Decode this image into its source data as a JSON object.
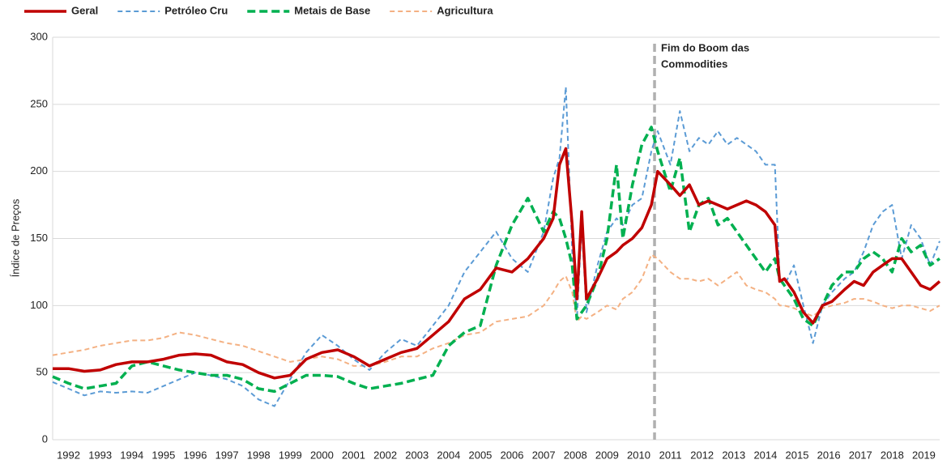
{
  "chart_data": {
    "type": "line",
    "y_label": "Índice de Preços",
    "annotation": {
      "x": 2011,
      "text": [
        "Fim do Boom das",
        "Commodities"
      ]
    },
    "xlim": [
      1992,
      2020
    ],
    "xticks": [
      1992,
      1993,
      1994,
      1995,
      1996,
      1997,
      1998,
      1999,
      2000,
      2001,
      2002,
      2003,
      2004,
      2005,
      2006,
      2007,
      2008,
      2009,
      2010,
      2011,
      2012,
      2013,
      2014,
      2015,
      2016,
      2017,
      2018,
      2019
    ],
    "ylim": [
      0,
      300
    ],
    "yticks": [
      0,
      50,
      100,
      150,
      200,
      250,
      300
    ],
    "grid": true,
    "legend": "top-left",
    "x": [
      1992,
      1992.5,
      1993,
      1993.5,
      1994,
      1994.5,
      1995,
      1995.5,
      1996,
      1996.5,
      1997,
      1997.5,
      1998,
      1998.5,
      1999,
      1999.5,
      2000,
      2000.5,
      2001,
      2001.5,
      2002,
      2002.5,
      2003,
      2003.5,
      2004,
      2004.5,
      2005,
      2005.5,
      2006,
      2006.5,
      2007,
      2007.5,
      2007.8,
      2008,
      2008.2,
      2008.4,
      2008.55,
      2008.7,
      2008.85,
      2009.2,
      2009.5,
      2009.8,
      2010,
      2010.3,
      2010.6,
      2010.9,
      2011.1,
      2011.5,
      2011.8,
      2012.1,
      2012.4,
      2012.7,
      2013,
      2013.3,
      2013.6,
      2013.9,
      2014.2,
      2014.5,
      2014.8,
      2014.95,
      2015.1,
      2015.4,
      2015.7,
      2016,
      2016.3,
      2016.6,
      2017,
      2017.3,
      2017.6,
      2017.9,
      2018.2,
      2018.5,
      2018.8,
      2019.1,
      2019.4,
      2019.7,
      2020
    ],
    "series": [
      {
        "name": "Geral",
        "color": "#c00000",
        "text_color": "#c00000",
        "dashed": false,
        "line_width": 3.5,
        "values": [
          53,
          53,
          51,
          52,
          56,
          58,
          58,
          60,
          63,
          64,
          63,
          58,
          56,
          50,
          46,
          48,
          60,
          65,
          67,
          62,
          55,
          60,
          65,
          68,
          78,
          88,
          105,
          112,
          128,
          125,
          135,
          150,
          165,
          205,
          217,
          160,
          105,
          170,
          105,
          120,
          135,
          140,
          145,
          150,
          158,
          175,
          200,
          190,
          182,
          190,
          175,
          178,
          175,
          172,
          175,
          178,
          175,
          170,
          160,
          118,
          120,
          110,
          95,
          87,
          100,
          103,
          112,
          118,
          115,
          125,
          130,
          135,
          135,
          125,
          115,
          112,
          118
        ]
      },
      {
        "name": "Petróleo Cru",
        "color": "#5b9bd5",
        "text_color": "#2e75b6",
        "dashed": true,
        "line_width": 2,
        "values": [
          43,
          38,
          33,
          36,
          35,
          36,
          35,
          40,
          45,
          50,
          48,
          45,
          40,
          30,
          25,
          45,
          65,
          78,
          70,
          60,
          52,
          65,
          75,
          70,
          85,
          100,
          125,
          140,
          155,
          135,
          125,
          155,
          195,
          210,
          263,
          140,
          90,
          160,
          95,
          130,
          155,
          165,
          160,
          175,
          180,
          215,
          230,
          205,
          245,
          215,
          225,
          220,
          230,
          220,
          225,
          220,
          215,
          205,
          205,
          120,
          115,
          130,
          100,
          72,
          100,
          110,
          120,
          125,
          140,
          160,
          170,
          175,
          135,
          160,
          150,
          130,
          148
        ]
      },
      {
        "name": "Metais de Base",
        "color": "#00b050",
        "text_color": "#00b050",
        "dashed": true,
        "line_width": 3.5,
        "values": [
          47,
          42,
          38,
          40,
          42,
          55,
          58,
          55,
          52,
          50,
          48,
          48,
          45,
          38,
          36,
          42,
          48,
          48,
          47,
          42,
          38,
          40,
          42,
          45,
          48,
          70,
          80,
          85,
          130,
          160,
          180,
          155,
          170,
          165,
          150,
          130,
          90,
          95,
          100,
          120,
          150,
          205,
          150,
          190,
          220,
          233,
          215,
          185,
          210,
          155,
          175,
          180,
          160,
          165,
          155,
          145,
          135,
          125,
          135,
          120,
          115,
          105,
          90,
          85,
          100,
          115,
          125,
          125,
          135,
          140,
          135,
          125,
          150,
          140,
          145,
          130,
          135
        ]
      },
      {
        "name": "Agricultura",
        "color": "#f4b183",
        "text_color": "#ffc000",
        "dashed": true,
        "line_width": 2,
        "values": [
          63,
          65,
          67,
          70,
          72,
          74,
          74,
          76,
          80,
          78,
          75,
          72,
          70,
          66,
          62,
          58,
          60,
          62,
          60,
          55,
          55,
          58,
          62,
          62,
          68,
          72,
          78,
          80,
          88,
          90,
          92,
          100,
          110,
          118,
          122,
          110,
          88,
          92,
          90,
          95,
          100,
          97,
          105,
          110,
          120,
          138,
          135,
          125,
          120,
          120,
          118,
          120,
          115,
          120,
          125,
          115,
          112,
          110,
          105,
          100,
          100,
          98,
          95,
          92,
          98,
          100,
          102,
          105,
          105,
          103,
          100,
          98,
          100,
          100,
          98,
          96,
          100
        ]
      }
    ]
  }
}
